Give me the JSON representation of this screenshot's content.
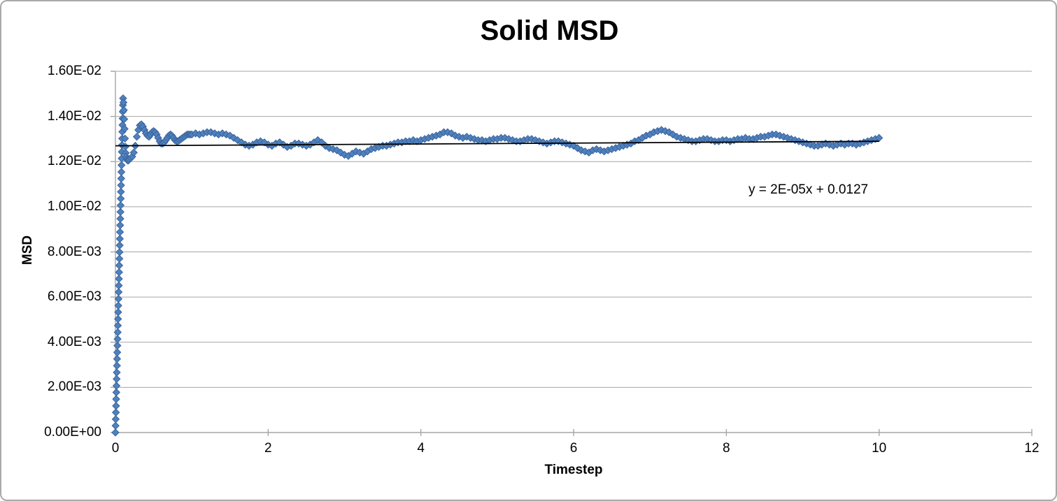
{
  "chart_data": {
    "type": "scatter",
    "title": "Solid MSD",
    "xlabel": "Timestep",
    "ylabel": "MSD",
    "xlim": [
      0,
      12
    ],
    "ylim": [
      0,
      0.016
    ],
    "x_tick_values": [
      0,
      2,
      4,
      6,
      8,
      10,
      12
    ],
    "x_tick_labels": [
      "0",
      "2",
      "4",
      "6",
      "8",
      "10",
      "12"
    ],
    "y_tick_values": [
      0,
      0.002,
      0.004,
      0.006,
      0.008,
      0.01,
      0.012,
      0.014,
      0.016
    ],
    "y_tick_labels": [
      "0.00E+00",
      "2.00E-03",
      "4.00E-03",
      "6.00E-03",
      "8.00E-03",
      "1.00E-02",
      "1.20E-02",
      "1.40E-02",
      "1.60E-02"
    ],
    "grid": true,
    "legend": false,
    "colors": {
      "marker_fill": "#4F81BD",
      "marker_border": "#3A659E",
      "gridline": "#A6A6A6",
      "axis": "#A6A6A6",
      "trendline": "#000000",
      "text": "#000000",
      "frame_border": "#A9A9A9"
    },
    "trendline": {
      "equation": "y = 2E-05x + 0.0127",
      "slope": 2e-05,
      "intercept": 0.0127,
      "x_range": [
        0,
        10
      ]
    },
    "series": [
      {
        "name": "Solid MSD",
        "marker": "diamond",
        "points": [
          [
            0,
            0
          ],
          [
            0.002,
            0.0003
          ],
          [
            0.004,
            0.00059
          ],
          [
            0.006,
            0.00089
          ],
          [
            0.008,
            0.00118
          ],
          [
            0.01,
            0.00148
          ],
          [
            0.012,
            0.00178
          ],
          [
            0.014,
            0.00207
          ],
          [
            0.016,
            0.00237
          ],
          [
            0.018,
            0.00266
          ],
          [
            0.02,
            0.00296
          ],
          [
            0.022,
            0.00326
          ],
          [
            0.024,
            0.00355
          ],
          [
            0.026,
            0.00385
          ],
          [
            0.028,
            0.00414
          ],
          [
            0.03,
            0.00444
          ],
          [
            0.032,
            0.00474
          ],
          [
            0.034,
            0.00503
          ],
          [
            0.036,
            0.00533
          ],
          [
            0.038,
            0.00562
          ],
          [
            0.04,
            0.00592
          ],
          [
            0.042,
            0.00622
          ],
          [
            0.044,
            0.00651
          ],
          [
            0.046,
            0.00681
          ],
          [
            0.048,
            0.0071
          ],
          [
            0.05,
            0.0074
          ],
          [
            0.052,
            0.0077
          ],
          [
            0.054,
            0.00799
          ],
          [
            0.056,
            0.00829
          ],
          [
            0.058,
            0.00858
          ],
          [
            0.06,
            0.00888
          ],
          [
            0.062,
            0.00918
          ],
          [
            0.064,
            0.00947
          ],
          [
            0.066,
            0.00977
          ],
          [
            0.068,
            0.01006
          ],
          [
            0.07,
            0.01036
          ],
          [
            0.072,
            0.01066
          ],
          [
            0.074,
            0.01095
          ],
          [
            0.076,
            0.01125
          ],
          [
            0.078,
            0.01154
          ],
          [
            0.08,
            0.01184
          ],
          [
            0.082,
            0.01214
          ],
          [
            0.084,
            0.01243
          ],
          [
            0.086,
            0.01273
          ],
          [
            0.088,
            0.01302
          ],
          [
            0.09,
            0.01332
          ],
          [
            0.092,
            0.01362
          ],
          [
            0.094,
            0.01391
          ],
          [
            0.096,
            0.01421
          ],
          [
            0.098,
            0.0145
          ],
          [
            0.1,
            0.0148
          ],
          [
            0.105,
            0.01462
          ],
          [
            0.11,
            0.01428
          ],
          [
            0.115,
            0.01388
          ],
          [
            0.12,
            0.01345
          ],
          [
            0.125,
            0.01302
          ],
          [
            0.13,
            0.01266
          ],
          [
            0.135,
            0.01238
          ],
          [
            0.14,
            0.01222
          ],
          [
            0.15,
            0.0121
          ],
          [
            0.16,
            0.01205
          ],
          [
            0.17,
            0.01205
          ],
          [
            0.18,
            0.0121
          ],
          [
            0.2,
            0.01215
          ],
          [
            0.22,
            0.01222
          ],
          [
            0.24,
            0.0124
          ],
          [
            0.26,
            0.0127
          ],
          [
            0.28,
            0.0131
          ],
          [
            0.3,
            0.0134
          ],
          [
            0.32,
            0.0136
          ],
          [
            0.34,
            0.01365
          ],
          [
            0.36,
            0.01355
          ],
          [
            0.38,
            0.0134
          ],
          [
            0.4,
            0.01325
          ],
          [
            0.42,
            0.01315
          ],
          [
            0.44,
            0.0131
          ],
          [
            0.46,
            0.0132
          ],
          [
            0.48,
            0.0133
          ],
          [
            0.5,
            0.01335
          ],
          [
            0.52,
            0.0133
          ],
          [
            0.54,
            0.0132
          ],
          [
            0.56,
            0.01305
          ],
          [
            0.58,
            0.0129
          ],
          [
            0.6,
            0.0128
          ],
          [
            0.62,
            0.0128
          ],
          [
            0.64,
            0.01285
          ],
          [
            0.66,
            0.01295
          ],
          [
            0.68,
            0.01305
          ],
          [
            0.7,
            0.01315
          ],
          [
            0.72,
            0.0132
          ],
          [
            0.74,
            0.01315
          ],
          [
            0.76,
            0.01305
          ],
          [
            0.78,
            0.01295
          ],
          [
            0.8,
            0.0129
          ],
          [
            0.82,
            0.0129
          ],
          [
            0.84,
            0.01295
          ],
          [
            0.86,
            0.013
          ],
          [
            0.88,
            0.01305
          ],
          [
            0.9,
            0.0131
          ],
          [
            0.92,
            0.01315
          ],
          [
            0.94,
            0.0132
          ],
          [
            0.96,
            0.0132
          ],
          [
            0.98,
            0.0132
          ],
          [
            1,
            0.0132
          ],
          [
            1.05,
            0.01325
          ],
          [
            1.1,
            0.0132
          ],
          [
            1.15,
            0.01325
          ],
          [
            1.2,
            0.0133
          ],
          [
            1.25,
            0.0133
          ],
          [
            1.3,
            0.01325
          ],
          [
            1.35,
            0.0132
          ],
          [
            1.4,
            0.01325
          ],
          [
            1.45,
            0.0132
          ],
          [
            1.5,
            0.01315
          ],
          [
            1.55,
            0.01305
          ],
          [
            1.6,
            0.01295
          ],
          [
            1.65,
            0.01285
          ],
          [
            1.7,
            0.01275
          ],
          [
            1.75,
            0.0127
          ],
          [
            1.8,
            0.01275
          ],
          [
            1.85,
            0.01285
          ],
          [
            1.9,
            0.0129
          ],
          [
            1.95,
            0.01285
          ],
          [
            2,
            0.01275
          ],
          [
            2.05,
            0.0127
          ],
          [
            2.1,
            0.0128
          ],
          [
            2.15,
            0.01285
          ],
          [
            2.2,
            0.01275
          ],
          [
            2.25,
            0.01265
          ],
          [
            2.3,
            0.0127
          ],
          [
            2.35,
            0.0128
          ],
          [
            2.4,
            0.0128
          ],
          [
            2.45,
            0.01275
          ],
          [
            2.5,
            0.0127
          ],
          [
            2.55,
            0.01275
          ],
          [
            2.6,
            0.01285
          ],
          [
            2.65,
            0.01295
          ],
          [
            2.7,
            0.01285
          ],
          [
            2.75,
            0.0127
          ],
          [
            2.8,
            0.0126
          ],
          [
            2.85,
            0.01255
          ],
          [
            2.9,
            0.0125
          ],
          [
            2.95,
            0.0124
          ],
          [
            3,
            0.0123
          ],
          [
            3.05,
            0.01225
          ],
          [
            3.1,
            0.01235
          ],
          [
            3.15,
            0.01245
          ],
          [
            3.2,
            0.0124
          ],
          [
            3.25,
            0.01235
          ],
          [
            3.3,
            0.01245
          ],
          [
            3.35,
            0.01255
          ],
          [
            3.4,
            0.0126
          ],
          [
            3.45,
            0.01265
          ],
          [
            3.5,
            0.0127
          ],
          [
            3.55,
            0.0127
          ],
          [
            3.6,
            0.01275
          ],
          [
            3.65,
            0.0128
          ],
          [
            3.7,
            0.01285
          ],
          [
            3.75,
            0.01285
          ],
          [
            3.8,
            0.0129
          ],
          [
            3.85,
            0.0129
          ],
          [
            3.9,
            0.01295
          ],
          [
            3.95,
            0.0129
          ],
          [
            4,
            0.01295
          ],
          [
            4.05,
            0.013
          ],
          [
            4.1,
            0.01305
          ],
          [
            4.15,
            0.0131
          ],
          [
            4.2,
            0.01315
          ],
          [
            4.25,
            0.0132
          ],
          [
            4.3,
            0.0133
          ],
          [
            4.35,
            0.0133
          ],
          [
            4.4,
            0.01325
          ],
          [
            4.45,
            0.01315
          ],
          [
            4.5,
            0.0131
          ],
          [
            4.55,
            0.01305
          ],
          [
            4.6,
            0.0131
          ],
          [
            4.65,
            0.01305
          ],
          [
            4.7,
            0.013
          ],
          [
            4.75,
            0.01295
          ],
          [
            4.8,
            0.01295
          ],
          [
            4.85,
            0.0129
          ],
          [
            4.9,
            0.01295
          ],
          [
            4.95,
            0.013
          ],
          [
            5,
            0.013
          ],
          [
            5.05,
            0.01305
          ],
          [
            5.1,
            0.01305
          ],
          [
            5.15,
            0.013
          ],
          [
            5.2,
            0.01295
          ],
          [
            5.25,
            0.0129
          ],
          [
            5.3,
            0.0129
          ],
          [
            5.35,
            0.01295
          ],
          [
            5.4,
            0.013
          ],
          [
            5.45,
            0.013
          ],
          [
            5.5,
            0.01295
          ],
          [
            5.55,
            0.0129
          ],
          [
            5.6,
            0.01285
          ],
          [
            5.65,
            0.0128
          ],
          [
            5.7,
            0.01285
          ],
          [
            5.75,
            0.0129
          ],
          [
            5.8,
            0.0129
          ],
          [
            5.85,
            0.01285
          ],
          [
            5.9,
            0.0128
          ],
          [
            5.95,
            0.01275
          ],
          [
            6,
            0.0127
          ],
          [
            6.05,
            0.0126
          ],
          [
            6.1,
            0.0125
          ],
          [
            6.15,
            0.01245
          ],
          [
            6.2,
            0.0124
          ],
          [
            6.25,
            0.0125
          ],
          [
            6.3,
            0.01255
          ],
          [
            6.35,
            0.0125
          ],
          [
            6.4,
            0.01245
          ],
          [
            6.45,
            0.0125
          ],
          [
            6.5,
            0.01255
          ],
          [
            6.55,
            0.0126
          ],
          [
            6.6,
            0.01265
          ],
          [
            6.65,
            0.0127
          ],
          [
            6.7,
            0.01275
          ],
          [
            6.75,
            0.0128
          ],
          [
            6.8,
            0.0129
          ],
          [
            6.85,
            0.01295
          ],
          [
            6.9,
            0.01305
          ],
          [
            6.95,
            0.01315
          ],
          [
            7,
            0.0132
          ],
          [
            7.05,
            0.0133
          ],
          [
            7.1,
            0.01335
          ],
          [
            7.15,
            0.0134
          ],
          [
            7.2,
            0.01335
          ],
          [
            7.25,
            0.0133
          ],
          [
            7.3,
            0.0132
          ],
          [
            7.35,
            0.0131
          ],
          [
            7.4,
            0.01305
          ],
          [
            7.45,
            0.013
          ],
          [
            7.5,
            0.01295
          ],
          [
            7.55,
            0.0129
          ],
          [
            7.6,
            0.0129
          ],
          [
            7.65,
            0.01295
          ],
          [
            7.7,
            0.013
          ],
          [
            7.75,
            0.013
          ],
          [
            7.8,
            0.01295
          ],
          [
            7.85,
            0.0129
          ],
          [
            7.9,
            0.0129
          ],
          [
            7.95,
            0.01295
          ],
          [
            8,
            0.01295
          ],
          [
            8.05,
            0.0129
          ],
          [
            8.1,
            0.01295
          ],
          [
            8.15,
            0.013
          ],
          [
            8.2,
            0.013
          ],
          [
            8.25,
            0.01305
          ],
          [
            8.3,
            0.013
          ],
          [
            8.35,
            0.013
          ],
          [
            8.4,
            0.01305
          ],
          [
            8.45,
            0.0131
          ],
          [
            8.5,
            0.0131
          ],
          [
            8.55,
            0.01315
          ],
          [
            8.6,
            0.0132
          ],
          [
            8.65,
            0.0132
          ],
          [
            8.7,
            0.01315
          ],
          [
            8.75,
            0.0131
          ],
          [
            8.8,
            0.01305
          ],
          [
            8.85,
            0.013
          ],
          [
            8.9,
            0.01295
          ],
          [
            8.95,
            0.0129
          ],
          [
            9,
            0.01285
          ],
          [
            9.05,
            0.0128
          ],
          [
            9.1,
            0.01275
          ],
          [
            9.15,
            0.0127
          ],
          [
            9.2,
            0.0127
          ],
          [
            9.25,
            0.01275
          ],
          [
            9.3,
            0.0128
          ],
          [
            9.35,
            0.01275
          ],
          [
            9.4,
            0.0127
          ],
          [
            9.45,
            0.01275
          ],
          [
            9.5,
            0.0128
          ],
          [
            9.55,
            0.01275
          ],
          [
            9.6,
            0.0128
          ],
          [
            9.65,
            0.0128
          ],
          [
            9.7,
            0.01275
          ],
          [
            9.75,
            0.0128
          ],
          [
            9.8,
            0.01285
          ],
          [
            9.85,
            0.0129
          ],
          [
            9.9,
            0.01295
          ],
          [
            9.95,
            0.013
          ],
          [
            10,
            0.01305
          ]
        ]
      }
    ]
  }
}
